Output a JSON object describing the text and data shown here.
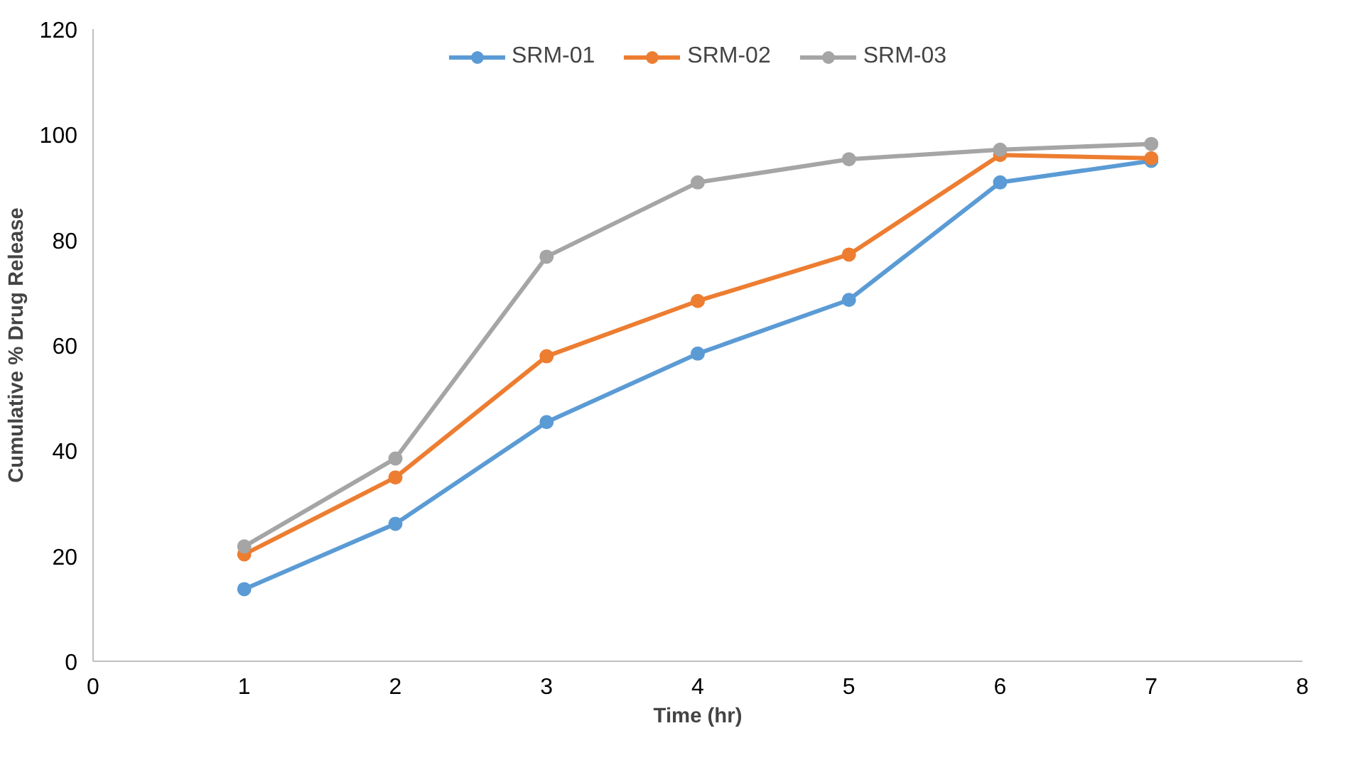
{
  "chart_data": {
    "type": "line",
    "xlabel": "Time (hr)",
    "ylabel": "Cumulative % Drug Release",
    "x": [
      1,
      2,
      3,
      4,
      5,
      6,
      7
    ],
    "xlim": [
      0,
      8
    ],
    "xticks": [
      0,
      1,
      2,
      3,
      4,
      5,
      6,
      7,
      8
    ],
    "ylim": [
      0,
      120
    ],
    "yticks": [
      0,
      20,
      40,
      60,
      80,
      100,
      120
    ],
    "grid": false,
    "legend": "top",
    "marker": "circle",
    "line_style": "solid",
    "series": [
      {
        "name": "SRM-01",
        "color": "#5b9bd5",
        "values": [
          13.7,
          26.1,
          45.4,
          58.4,
          68.6,
          90.9,
          95.0
        ]
      },
      {
        "name": "SRM-02",
        "color": "#ed7d31",
        "values": [
          20.3,
          34.9,
          57.9,
          68.4,
          77.2,
          96.1,
          95.5
        ]
      },
      {
        "name": "SRM-03",
        "color": "#a5a5a5",
        "values": [
          21.8,
          38.5,
          76.8,
          90.9,
          95.3,
          97.1,
          98.2
        ]
      }
    ]
  }
}
